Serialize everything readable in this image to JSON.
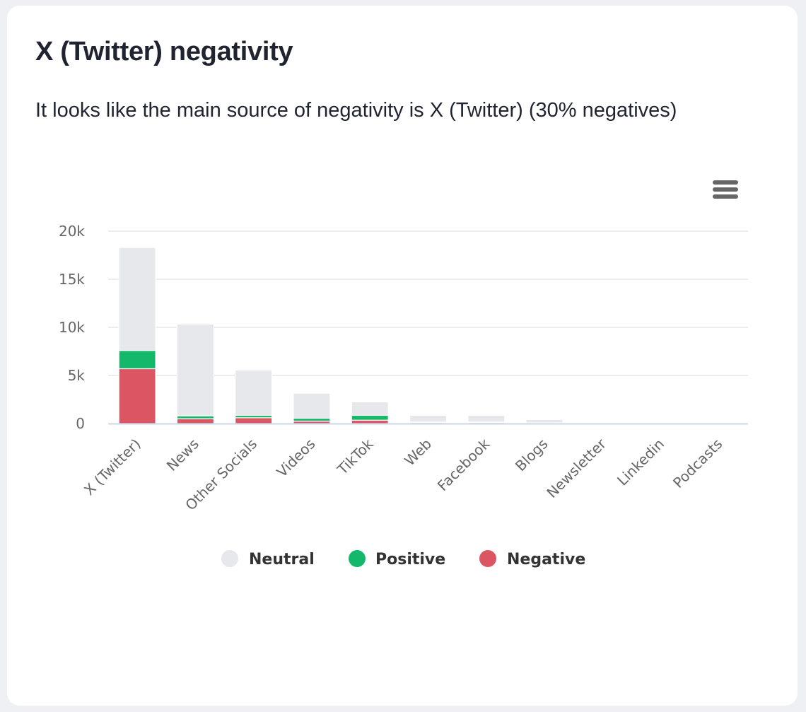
{
  "card": {
    "title": "X (Twitter) negativity",
    "subtitle": "It looks like the main source of negativity is X (Twitter) (30% negatives)",
    "menu_icon": "hamburger-menu-icon"
  },
  "colors": {
    "neutral": "#e6e8eb",
    "positive": "#14b86a",
    "negative": "#db5563",
    "gridline": "#e6e6e6",
    "axis": "#ccd6eb"
  },
  "chart_data": {
    "type": "bar",
    "stacked": true,
    "categories": [
      "X (Twitter)",
      "News",
      "Other Socials",
      "Videos",
      "TikTok",
      "Web",
      "Facebook",
      "Blogs",
      "Newsletter",
      "Linkedin",
      "Podcasts"
    ],
    "series": [
      {
        "name": "Neutral",
        "color": "#e6e8eb",
        "values": [
          10700,
          9550,
          4700,
          2600,
          1400,
          700,
          700,
          350,
          30,
          20,
          20
        ]
      },
      {
        "name": "Positive",
        "color": "#14b86a",
        "values": [
          1900,
          300,
          250,
          300,
          500,
          50,
          50,
          20,
          0,
          0,
          0
        ]
      },
      {
        "name": "Negative",
        "color": "#db5563",
        "values": [
          5700,
          500,
          600,
          250,
          350,
          100,
          100,
          50,
          0,
          0,
          0
        ]
      }
    ],
    "y_ticks": [
      "0",
      "5k",
      "10k",
      "15k",
      "20k"
    ],
    "ylim": [
      0,
      20000
    ],
    "grid": true,
    "legend_position": "bottom-center",
    "xlabel": "",
    "ylabel": ""
  }
}
